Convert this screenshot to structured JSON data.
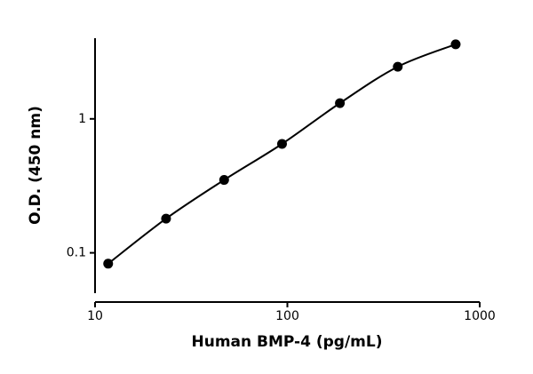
{
  "chart_data": {
    "type": "scatter",
    "x_label": "Human BMP-4 (pg/mL)",
    "y_label": "O.D. (450 nm)",
    "x": [
      11.7,
      23.4,
      46.9,
      93.8,
      187.5,
      375,
      750
    ],
    "values": [
      0.083,
      0.18,
      0.35,
      0.65,
      1.31,
      2.45,
      3.6
    ],
    "color": "#000000",
    "fit_curve": true,
    "xlog": true,
    "ylog": true,
    "xlim": [
      10,
      1000
    ],
    "ylim": [
      0.05,
      4
    ],
    "xticks": [
      10,
      100,
      1000
    ],
    "yticks": [
      0.1,
      1
    ]
  }
}
